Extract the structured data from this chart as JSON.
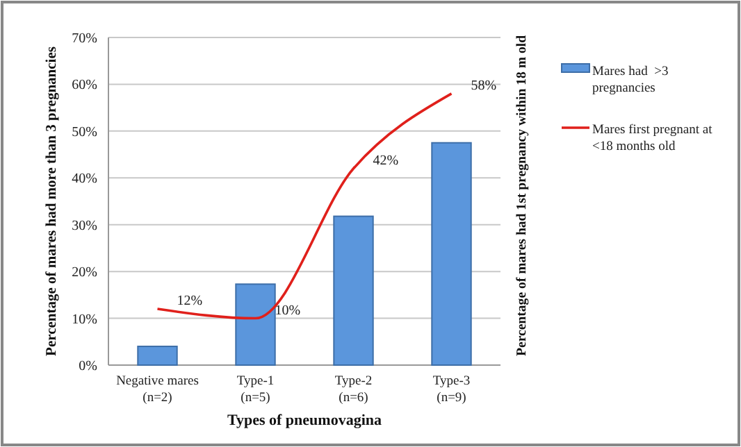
{
  "chart_data": {
    "type": "bar",
    "xlabel": "Types of pneumovagina",
    "ylabel": "Percentage of mares had more than 3 pregnancies",
    "y2label": "Percentage of mares had 1st pregnancy within 18 m old",
    "categories": [
      "Negative mares (n=2)",
      "Type-1 (n=5)",
      "Type-2 (n=6)",
      "Type-3 (n=9)"
    ],
    "series": [
      {
        "name": "Mares had  >3 pregnancies",
        "color": "#5b96dc",
        "values": [
          4,
          17.3,
          31.8,
          47.5
        ]
      },
      {
        "name": "Mares first pregnant at <18 months old",
        "type": "line",
        "color": "#e0201b",
        "values": [
          12,
          10,
          42,
          58
        ],
        "value_labels": [
          "12%",
          "10%",
          "42%",
          "58%"
        ]
      }
    ],
    "ylim": [
      0,
      70
    ],
    "yticks": [
      {
        "value": 0,
        "label": "0%"
      },
      {
        "value": 10,
        "label": "10%"
      },
      {
        "value": 20,
        "label": "20%"
      },
      {
        "value": 30,
        "label": "30%"
      },
      {
        "value": 40,
        "label": "40%"
      },
      {
        "value": 50,
        "label": "50%"
      },
      {
        "value": 60,
        "label": "60%"
      },
      {
        "value": 70,
        "label": "70%"
      }
    ],
    "grid": "y",
    "legend": "right",
    "marker": "none"
  }
}
